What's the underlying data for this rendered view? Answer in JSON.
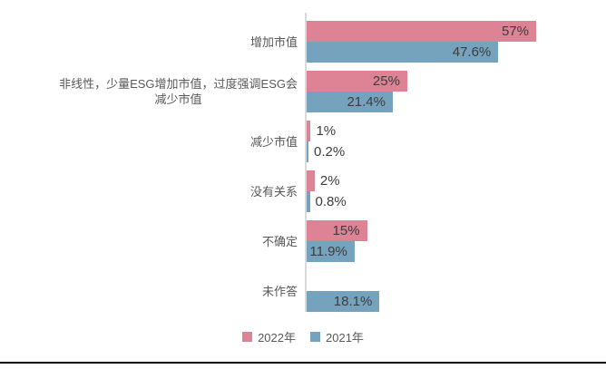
{
  "chart_data": {
    "type": "bar",
    "orientation": "horizontal",
    "title": "",
    "xlabel": "",
    "ylabel": "",
    "categories": [
      "增加市值",
      "非线性，少量ESG增加市值，过度强调ESG会\n减少市值",
      "减少市值",
      "没有关系",
      "不确定",
      "未作答"
    ],
    "series": [
      {
        "name": "2022年",
        "color": "#de8295",
        "values": [
          57,
          25,
          1,
          2,
          15,
          null
        ],
        "labels": [
          "57%",
          "25%",
          "1%",
          "2%",
          "15%",
          null
        ]
      },
      {
        "name": "2021年",
        "color": "#75a3be",
        "values": [
          47.6,
          21.4,
          0.2,
          0.8,
          11.9,
          18.1
        ],
        "labels": [
          "47.6%",
          "21.4%",
          "0.2%",
          "0.8%",
          "11.9%",
          "18.1%"
        ]
      }
    ],
    "value_unit": "%",
    "xlim": [
      0,
      74
    ],
    "grid": false,
    "legend_position": "bottom",
    "colors": {
      "axis_line": "#d9d9d9",
      "category_label": "#595959",
      "value_label": "#3d3d3d",
      "legend_label": "#595959",
      "bottom_rule": "#000000",
      "background": "#ffffff"
    }
  }
}
